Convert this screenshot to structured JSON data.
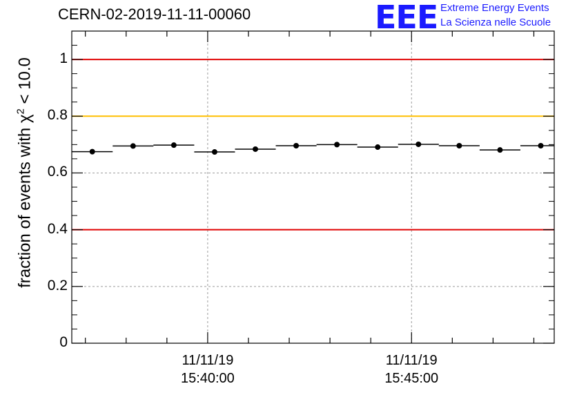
{
  "title": "CERN-02-2019-11-11-00060",
  "logo": {
    "mark": "EEE",
    "line1": "Extreme Energy Events",
    "line2": "La Scienza nelle Scuole"
  },
  "colors": {
    "limit_red": "#e00000",
    "limit_yellow": "#ffbf00",
    "marker": "#000000",
    "logo": "#1a1aff"
  },
  "chart_data": {
    "type": "scatter",
    "title": "CERN-02-2019-11-11-00060",
    "ylabel_prefix": "fraction of events with χ",
    "ylabel_sup": "2",
    "ylabel_suffix": " < 10.0",
    "ylim": [
      0,
      1.1
    ],
    "yticks": [
      {
        "value": 0,
        "label": "0"
      },
      {
        "value": 0.2,
        "label": "0.2"
      },
      {
        "value": 0.4,
        "label": "0.4"
      },
      {
        "value": 0.6,
        "label": "0.6"
      },
      {
        "value": 0.8,
        "label": "0.8"
      },
      {
        "value": 1,
        "label": "1"
      }
    ],
    "xlim_minutes": [
      15.6667,
      27.5
    ],
    "xticks_major": [
      {
        "minute": 19,
        "date": "11/11/19",
        "time": "15:40:00"
      },
      {
        "minute": 24,
        "date": "11/11/19",
        "time": "15:45:00"
      }
    ],
    "grid": true,
    "reference_lines": [
      {
        "y": 1.0,
        "color": "red"
      },
      {
        "y": 0.8,
        "color": "yellow"
      },
      {
        "y": 0.4,
        "color": "red"
      }
    ],
    "bin_width_minutes": 1,
    "points": [
      {
        "minute": 16.17,
        "y": 0.675
      },
      {
        "minute": 17.17,
        "y": 0.695
      },
      {
        "minute": 18.17,
        "y": 0.698
      },
      {
        "minute": 19.17,
        "y": 0.674
      },
      {
        "minute": 20.17,
        "y": 0.684
      },
      {
        "minute": 21.17,
        "y": 0.696
      },
      {
        "minute": 22.17,
        "y": 0.7
      },
      {
        "minute": 23.17,
        "y": 0.691
      },
      {
        "minute": 24.17,
        "y": 0.701
      },
      {
        "minute": 25.17,
        "y": 0.696
      },
      {
        "minute": 26.17,
        "y": 0.681
      },
      {
        "minute": 27.17,
        "y": 0.696
      }
    ]
  }
}
